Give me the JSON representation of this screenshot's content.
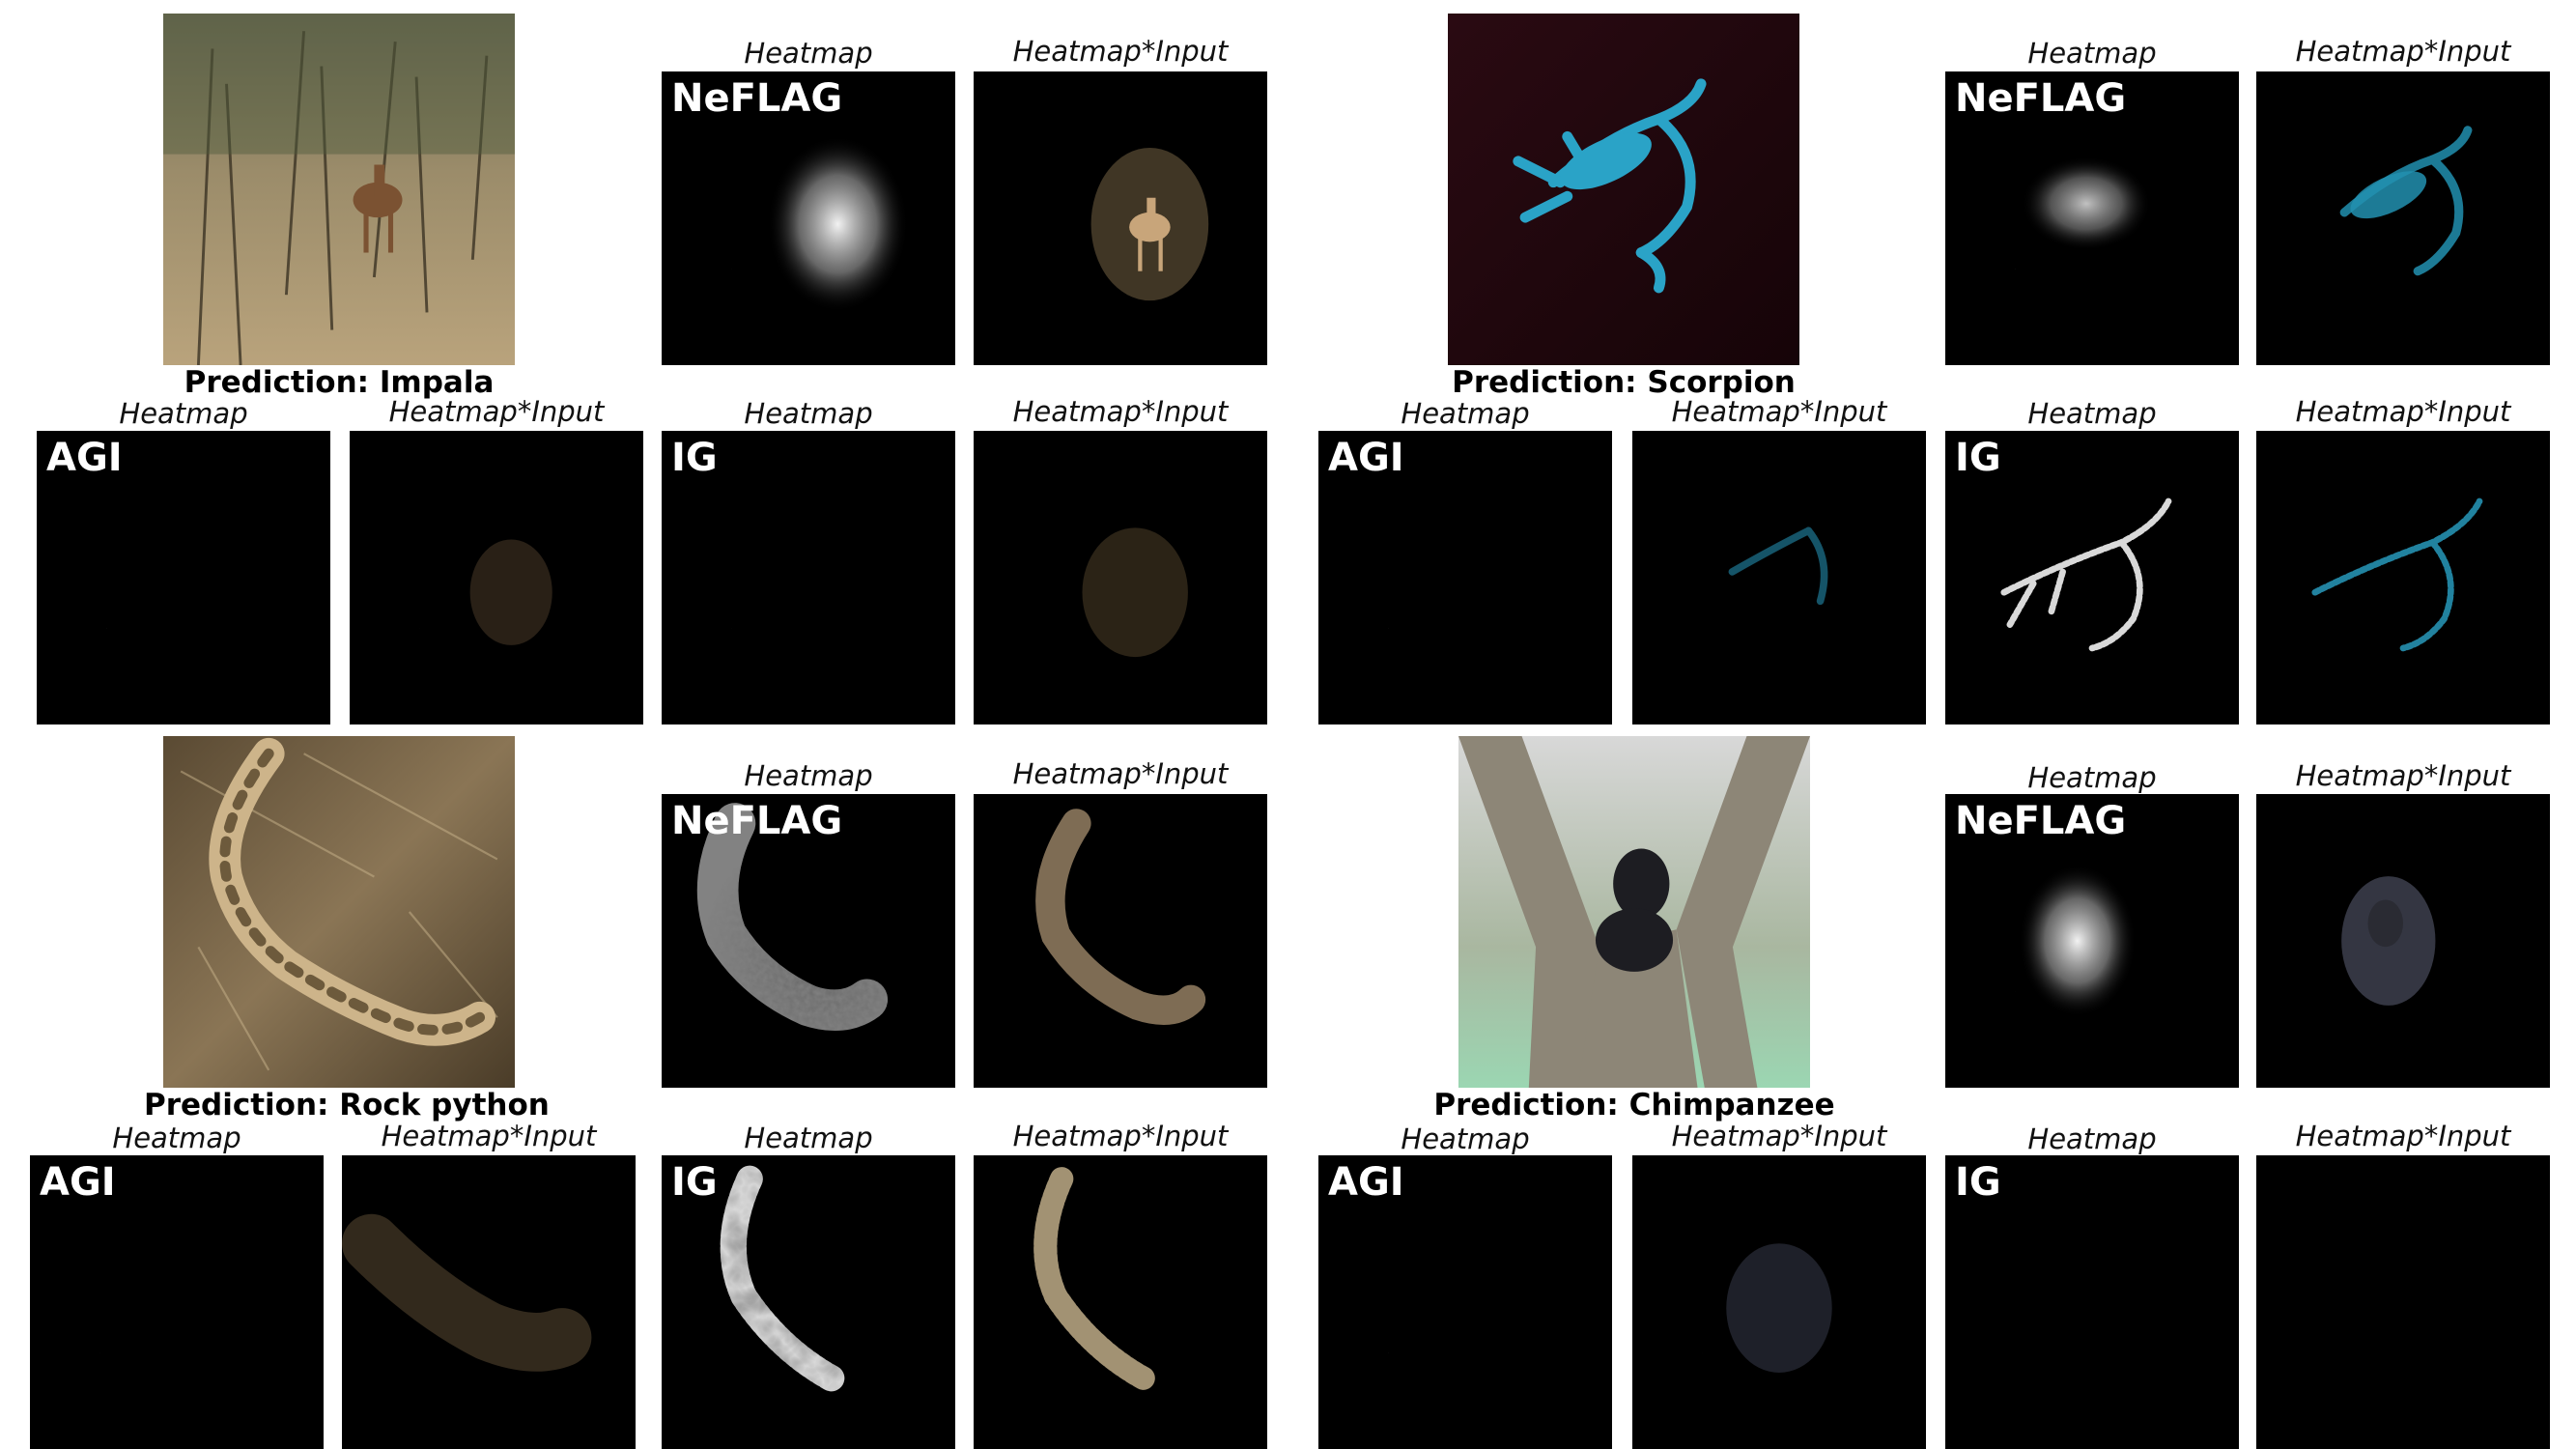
{
  "captions": {
    "heatmap": "Heatmap",
    "heatmap_input": "Heatmap*Input"
  },
  "methods": {
    "neflag": "NeFLAG",
    "agi": "AGI",
    "ig": "IG"
  },
  "examples": [
    {
      "name": "impala",
      "prediction": "Prediction: Impala",
      "subject_color": "#c8a57a"
    },
    {
      "name": "scorpion",
      "prediction": "Prediction: Scorpion",
      "subject_color": "#2aa3c7"
    },
    {
      "name": "rock-python",
      "prediction": "Prediction: Rock python",
      "subject_color": "#cdb48a"
    },
    {
      "name": "chimpanzee",
      "prediction": "Prediction: Chimpanzee",
      "subject_color": "#8a8fa8"
    }
  ]
}
